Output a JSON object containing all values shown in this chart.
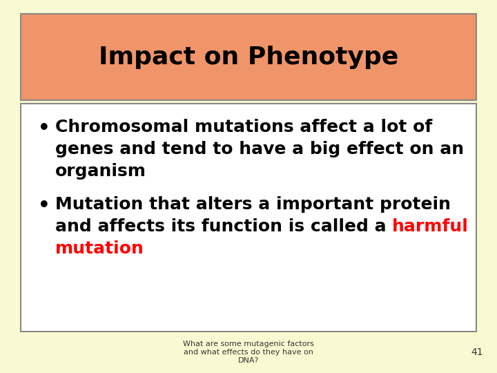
{
  "title": "Impact on Phenotype",
  "title_bg_color": "#F0956A",
  "slide_bg_color": "#FAFAD2",
  "content_box_bg": "#FFFFFF",
  "outer_border_color": "#888888",
  "title_text_color": "#000000",
  "bullet_text_color": "#000000",
  "highlight_color": "#FF0000",
  "bullet1_line1": "Chromosomal mutations affect a lot of",
  "bullet1_line2": "genes and tend to have a big effect on an",
  "bullet1_line3": "organism",
  "bullet2_line1": "Mutation that alters a important protein",
  "bullet2_line2_normal": "and affects its function is called a ",
  "bullet2_line2_highlight": "harmful",
  "bullet2_line3_highlight": "mutation",
  "footer_text": "What are some mutagenic factors\nand what effects do they have on\nDNA?",
  "footer_number": "41",
  "font_size_title": 26,
  "font_size_bullet": 18,
  "font_size_footer": 8
}
